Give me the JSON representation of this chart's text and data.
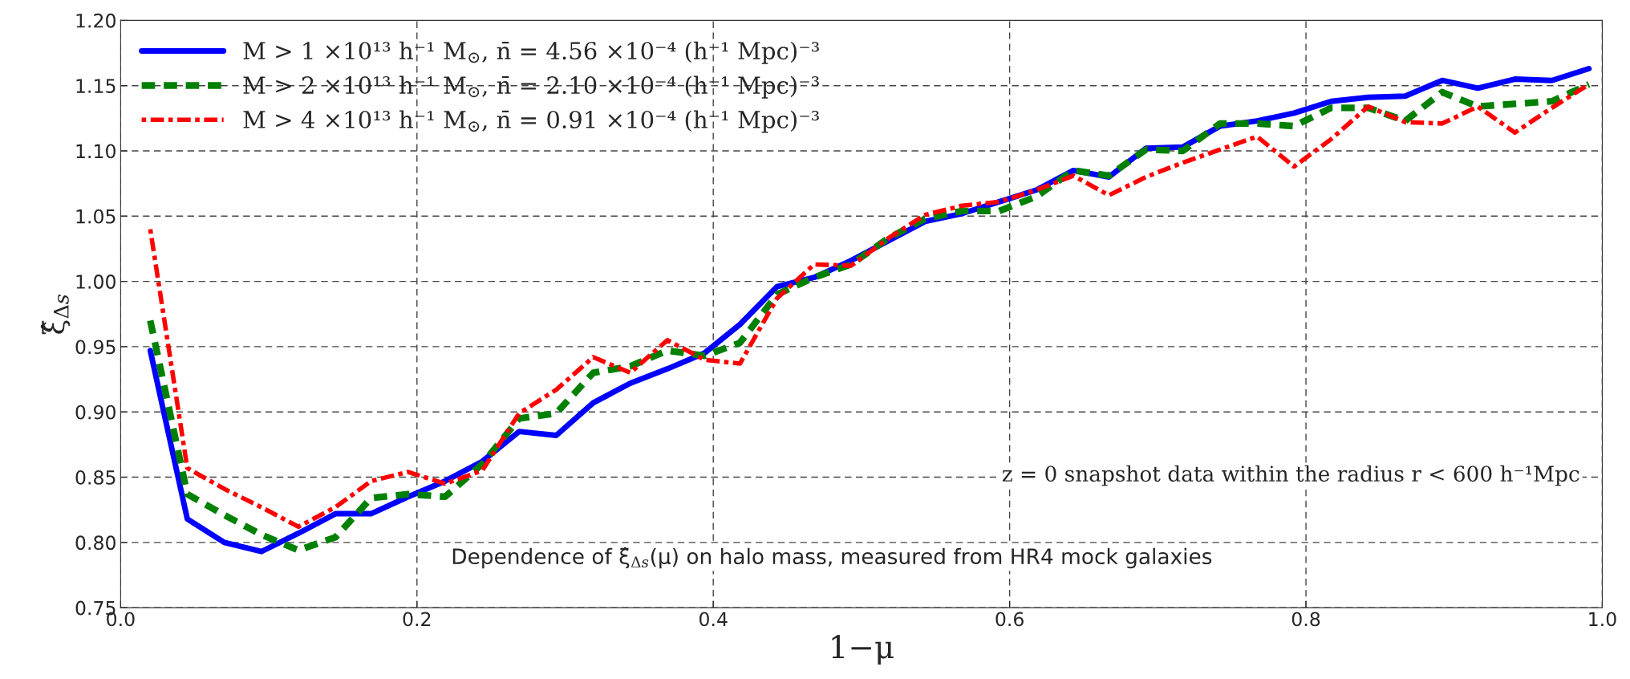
{
  "chart_data": {
    "type": "line",
    "xlabel": "1−μ",
    "ylabel": "ξ̂$_{Δs}$",
    "x": [
      0.02,
      0.045,
      0.07,
      0.095,
      0.12,
      0.145,
      0.169,
      0.194,
      0.219,
      0.244,
      0.269,
      0.294,
      0.319,
      0.344,
      0.369,
      0.394,
      0.418,
      0.443,
      0.468,
      0.493,
      0.518,
      0.543,
      0.568,
      0.593,
      0.618,
      0.643,
      0.667,
      0.692,
      0.717,
      0.742,
      0.767,
      0.792,
      0.817,
      0.842,
      0.867,
      0.892,
      0.916,
      0.941,
      0.966,
      0.991
    ],
    "series": [
      {
        "name": "M > 1 ×10¹³ h⁻¹ M$_{⊙}$, n̄ = 4.56 ×10⁻⁴ (h⁻¹ Mpc)⁻³",
        "color": "#0000ff",
        "line_style": "solid",
        "values": [
          0.947,
          0.818,
          0.8,
          0.793,
          0.807,
          0.822,
          0.822,
          0.835,
          0.847,
          0.862,
          0.885,
          0.882,
          0.907,
          0.922,
          0.933,
          0.945,
          0.967,
          0.996,
          1.003,
          1.016,
          1.031,
          1.046,
          1.052,
          1.061,
          1.07,
          1.085,
          1.08,
          1.102,
          1.103,
          1.119,
          1.123,
          1.129,
          1.138,
          1.141,
          1.142,
          1.154,
          1.148,
          1.155,
          1.154,
          1.163
        ]
      },
      {
        "name": "M > 2 ×10¹³ h⁻¹ M$_{⊙}$, n̄ = 2.10 ×10⁻⁴ (h⁻¹ Mpc)⁻³",
        "color": "#008000",
        "line_style": "dashed",
        "values": [
          0.97,
          0.837,
          0.821,
          0.806,
          0.794,
          0.804,
          0.834,
          0.837,
          0.835,
          0.86,
          0.895,
          0.899,
          0.93,
          0.935,
          0.947,
          0.943,
          0.953,
          0.99,
          1.003,
          1.013,
          1.033,
          1.048,
          1.054,
          1.054,
          1.065,
          1.085,
          1.081,
          1.101,
          1.1,
          1.121,
          1.121,
          1.119,
          1.133,
          1.133,
          1.123,
          1.145,
          1.134,
          1.136,
          1.138,
          1.151
        ]
      },
      {
        "name": "M > 4 ×10¹³ h⁻¹ M$_{⊙}$, n̄ = 0.91 ×10⁻⁴ (h⁻¹ Mpc)⁻³",
        "color": "#ff0000",
        "line_style": "dotted",
        "values": [
          1.04,
          0.857,
          0.841,
          0.827,
          0.812,
          0.827,
          0.847,
          0.854,
          0.845,
          0.855,
          0.899,
          0.917,
          0.942,
          0.93,
          0.955,
          0.94,
          0.937,
          0.987,
          1.013,
          1.012,
          1.033,
          1.051,
          1.058,
          1.061,
          1.07,
          1.081,
          1.066,
          1.08,
          1.091,
          1.101,
          1.111,
          1.088,
          1.109,
          1.134,
          1.122,
          1.121,
          1.134,
          1.114,
          1.133,
          1.151
        ]
      }
    ],
    "annotations": [
      "z = 0 snapshot data within the radius r < 600 h⁻¹Mpc",
      "Dependence of ξ̂$_{Δs}$(μ) on halo mass, measured from HR4 mock galaxies"
    ],
    "xlim": [
      0.0,
      1.0
    ],
    "xticks": [
      {
        "value": 0.0,
        "label": "0.0"
      },
      {
        "value": 0.2,
        "label": "0.2"
      },
      {
        "value": 0.4,
        "label": "0.4"
      },
      {
        "value": 0.6,
        "label": "0.6"
      },
      {
        "value": 0.8,
        "label": "0.8"
      },
      {
        "value": 1.0,
        "label": "1.0"
      }
    ],
    "ylim": [
      0.75,
      1.2
    ],
    "yticks": [
      {
        "value": 0.75,
        "label": "0.75"
      },
      {
        "value": 0.8,
        "label": "0.80"
      },
      {
        "value": 0.85,
        "label": "0.85"
      },
      {
        "value": 0.9,
        "label": "0.90"
      },
      {
        "value": 0.95,
        "label": "0.95"
      },
      {
        "value": 1.0,
        "label": "1.00"
      },
      {
        "value": 1.05,
        "label": "1.05"
      },
      {
        "value": 1.1,
        "label": "1.10"
      },
      {
        "value": 1.15,
        "label": "1.15"
      },
      {
        "value": 1.2,
        "label": "1.20"
      }
    ],
    "grid": true,
    "legend": "top left",
    "marker": "none"
  }
}
